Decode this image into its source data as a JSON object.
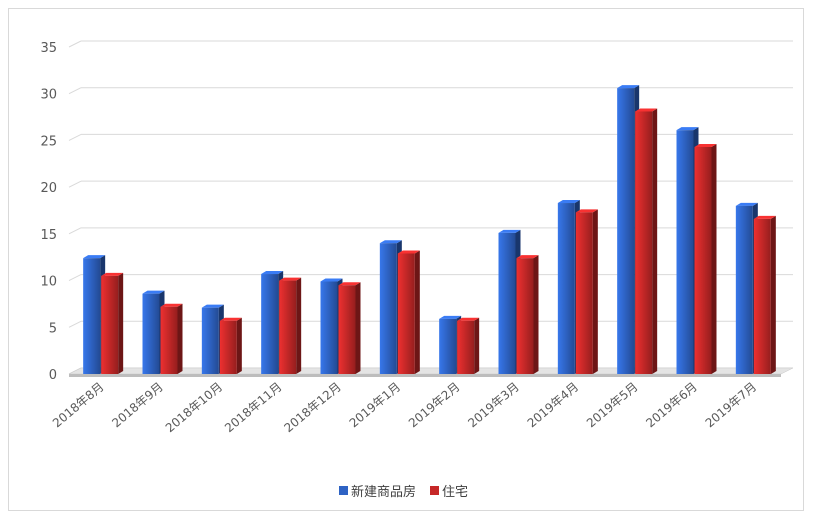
{
  "chart_data": {
    "type": "bar",
    "title": "",
    "xlabel": "",
    "ylabel": "",
    "ylim": [
      0,
      35
    ],
    "yticks": [
      0,
      5,
      10,
      15,
      20,
      25,
      30,
      35
    ],
    "grid": true,
    "legend_position": "bottom",
    "categories": [
      "2018年8月",
      "2018年9月",
      "2018年10月",
      "2018年11月",
      "2018年12月",
      "2019年1月",
      "2019年2月",
      "2019年3月",
      "2019年4月",
      "2019年5月",
      "2019年6月",
      "2019年7月"
    ],
    "series": [
      {
        "name": "新建商品房",
        "color": "#2e63c4",
        "values": [
          12.4,
          8.6,
          7.1,
          10.7,
          9.9,
          14.0,
          5.9,
          15.1,
          18.3,
          30.6,
          26.1,
          18.0
        ]
      },
      {
        "name": "住宅",
        "color": "#c62828",
        "values": [
          10.5,
          7.2,
          5.7,
          10.0,
          9.5,
          12.9,
          5.7,
          12.4,
          17.3,
          28.1,
          24.3,
          16.6
        ]
      }
    ]
  }
}
